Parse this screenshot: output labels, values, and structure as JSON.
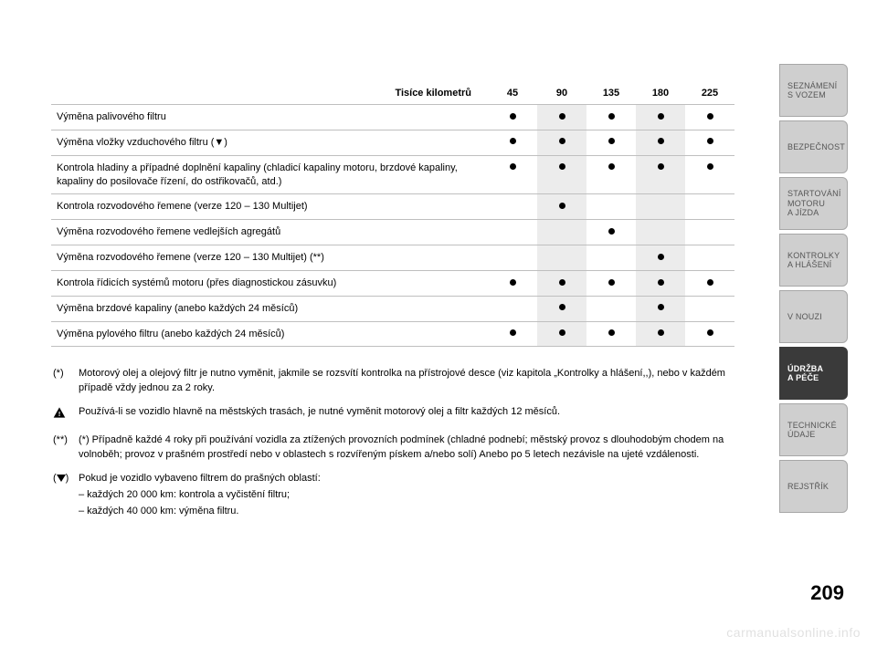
{
  "page_number": "209",
  "watermark": "carmanualsonline.info",
  "colors": {
    "background": "#ffffff",
    "text": "#000000",
    "row_border": "#bfbfbf",
    "stripe": "#ececec",
    "tab_inactive_bg": "#cfcfcf",
    "tab_inactive_text": "#565656",
    "tab_active_bg": "#3a3a3a",
    "tab_active_text": "#ffffff",
    "tab_border": "#a7a7a7",
    "watermark_color": "rgba(0,0,0,0.12)"
  },
  "typography": {
    "body_fontsize_pt": 8,
    "header_fontsize_pt": 8,
    "tab_fontsize_pt": 7,
    "pagenum_fontsize_pt": 16,
    "pagenum_weight": 800
  },
  "table": {
    "type": "table",
    "header_label": "Tisíce kilometrů",
    "columns": [
      "45",
      "90",
      "135",
      "180",
      "225"
    ],
    "stripe_columns": [
      1,
      3
    ],
    "dot_marker": "●",
    "rows": [
      {
        "label": "Výměna palivového filtru",
        "dots": [
          true,
          true,
          true,
          true,
          true
        ]
      },
      {
        "label": "Výměna vložky vzduchového filtru (▼)",
        "dots": [
          true,
          true,
          true,
          true,
          true
        ]
      },
      {
        "label": "Kontrola hladiny a případné doplnění kapaliny (chladicí kapaliny motoru, brzdové kapaliny, kapaliny do posilovače řízení, do ostřikovačů, atd.)",
        "dots": [
          true,
          true,
          true,
          true,
          true
        ]
      },
      {
        "label": "Kontrola rozvodového řemene (verze 120 – 130 Multijet)",
        "dots": [
          false,
          true,
          false,
          false,
          false
        ]
      },
      {
        "label": "Výměna rozvodového řemene vedlejších agregátů",
        "dots": [
          false,
          false,
          true,
          false,
          false
        ]
      },
      {
        "label": "Výměna rozvodového řemene (verze 120 – 130 Multijet) (**)",
        "dots": [
          false,
          false,
          false,
          true,
          false
        ]
      },
      {
        "label": "Kontrola řídicích systémů motoru (přes diagnostickou zásuvku)",
        "dots": [
          true,
          true,
          true,
          true,
          true
        ]
      },
      {
        "label": "Výměna brzdové kapaliny (anebo každých 24 měsíců)",
        "dots": [
          false,
          true,
          false,
          true,
          false
        ]
      },
      {
        "label": "Výměna pylového filtru (anebo každých 24 měsíců)",
        "dots": [
          true,
          true,
          true,
          true,
          true
        ]
      }
    ]
  },
  "notes": {
    "n1_mark": "(*)",
    "n1_text": "Motorový olej a olejový filtr je nutno vyměnit, jakmile se rozsvítí kontrolka na přístrojové desce (viz kapitola „Kontrolky a hlášení,,), nebo v každém případě vždy jednou za 2 roky.",
    "n2_text": "Používá-li se vozidlo hlavně na městských trasách, je nutné vyměnit motorový olej a filtr každých 12 měsíců.",
    "n3_mark": "(**)",
    "n3_text": "(*) Případně každé 4 roky při používání vozidla za ztížených provozních podmínek (chladné podnebí; městský provoz s dlouhodobým chodem na volnoběh; provoz v prašném prostředí nebo v oblastech s rozvířeným pískem a/nebo solí) Anebo po 5 letech nezávisle na ujeté vzdálenosti.",
    "n4_mark": "(▼)",
    "n4_text": "Pokud je vozidlo vybaveno filtrem do prašných oblastí:",
    "n4_sub1": "– každých 20 000 km: kontrola a vyčistění filtru;",
    "n4_sub2": "– každých 40 000 km: výměna filtru."
  },
  "tabs": [
    {
      "label": "SEZNÁMENÍ\nS VOZEM",
      "active": false
    },
    {
      "label": "BEZPEČNOST",
      "active": false
    },
    {
      "label": "STARTOVÁNÍ\nMOTORU\nA JÍZDA",
      "active": false
    },
    {
      "label": "KONTROLKY\nA HLÁŠENÍ",
      "active": false
    },
    {
      "label": "V NOUZI",
      "active": false
    },
    {
      "label": "ÚDRŽBA\nA PÉČE",
      "active": true
    },
    {
      "label": "TECHNICKÉ\nÚDAJE",
      "active": false
    },
    {
      "label": "REJSTŘÍK",
      "active": false
    }
  ]
}
